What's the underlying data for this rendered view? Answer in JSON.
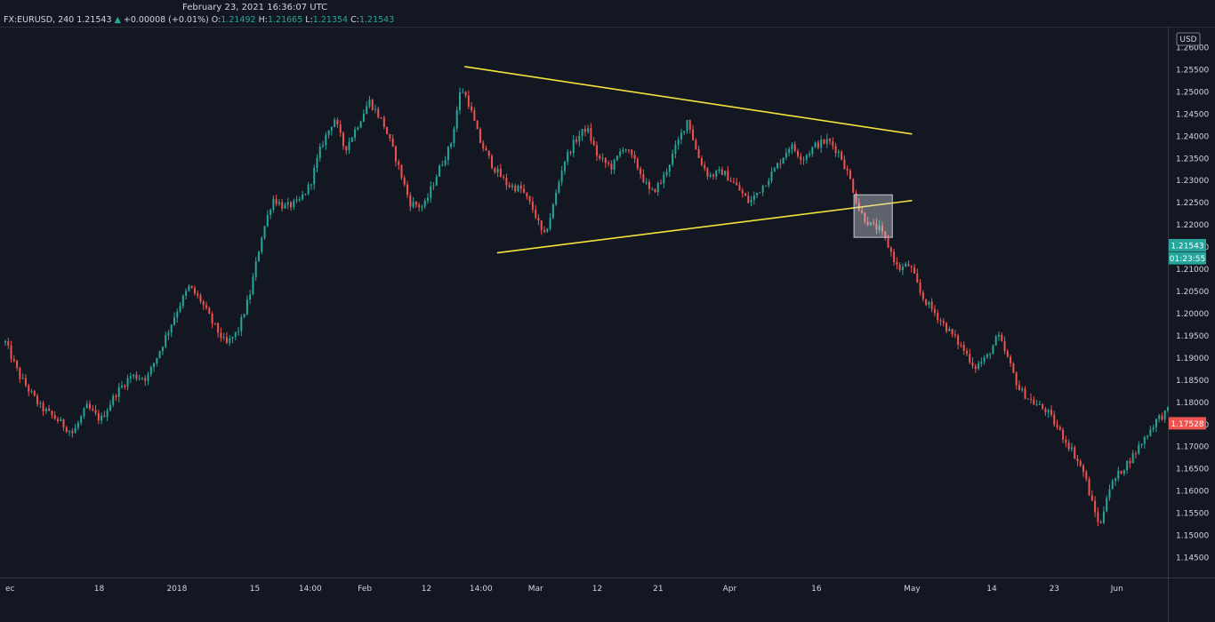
{
  "header": {
    "timestamp": "February 23, 2021 16:36:07 UTC",
    "symbol": "FX:EURUSD, 240",
    "last": "1.21543",
    "change_arrow": "▲",
    "change": "+0.00008 (+0.01%)",
    "o_label": "O:",
    "o_value": "1.21492",
    "h_label": "H:",
    "h_value": "1.21665",
    "l_label": "L:",
    "l_value": "1.21354",
    "c_label": "C:",
    "c_value": "1.21543"
  },
  "chart_data": {
    "type": "candlestick",
    "currency_label": "USD",
    "ylim": [
      1.1405,
      1.2645
    ],
    "y_ticks": [
      "1.14500",
      "1.15000",
      "1.15500",
      "1.16000",
      "1.16500",
      "1.17000",
      "1.17500",
      "1.18000",
      "1.18500",
      "1.19000",
      "1.19500",
      "1.20000",
      "1.20500",
      "1.21000",
      "1.21500",
      "1.22000",
      "1.22500",
      "1.23000",
      "1.23500",
      "1.24000",
      "1.24500",
      "1.25000",
      "1.25500",
      "1.26000"
    ],
    "x_ticks": [
      {
        "label": "ec",
        "pos": 0.0
      },
      {
        "label": "18",
        "pos": 0.0807
      },
      {
        "label": "2018",
        "pos": 0.1476
      },
      {
        "label": "15",
        "pos": 0.2146
      },
      {
        "label": "14:00",
        "pos": 0.2623
      },
      {
        "label": "Feb",
        "pos": 0.3092
      },
      {
        "label": "12",
        "pos": 0.3623
      },
      {
        "label": "14:00",
        "pos": 0.4092
      },
      {
        "label": "Mar",
        "pos": 0.4562
      },
      {
        "label": "12",
        "pos": 0.5092
      },
      {
        "label": "21",
        "pos": 0.5615
      },
      {
        "label": "Apr",
        "pos": 0.6231
      },
      {
        "label": "16",
        "pos": 0.6977
      },
      {
        "label": "May",
        "pos": 0.78
      },
      {
        "label": "14",
        "pos": 0.8485
      },
      {
        "label": "23",
        "pos": 0.9023
      },
      {
        "label": "Jun",
        "pos": 0.9562
      }
    ],
    "price_path": [
      [
        0.0,
        1.1935
      ],
      [
        0.012,
        1.186
      ],
      [
        0.03,
        1.179
      ],
      [
        0.045,
        1.176
      ],
      [
        0.058,
        1.173
      ],
      [
        0.07,
        1.179
      ],
      [
        0.082,
        1.176
      ],
      [
        0.095,
        1.182
      ],
      [
        0.108,
        1.186
      ],
      [
        0.122,
        1.1855
      ],
      [
        0.135,
        1.193
      ],
      [
        0.148,
        1.201
      ],
      [
        0.158,
        1.206
      ],
      [
        0.168,
        1.203
      ],
      [
        0.178,
        1.198
      ],
      [
        0.19,
        1.193
      ],
      [
        0.2,
        1.196
      ],
      [
        0.21,
        1.204
      ],
      [
        0.22,
        1.217
      ],
      [
        0.23,
        1.226
      ],
      [
        0.24,
        1.224
      ],
      [
        0.252,
        1.225
      ],
      [
        0.262,
        1.229
      ],
      [
        0.272,
        1.238
      ],
      [
        0.283,
        1.244
      ],
      [
        0.292,
        1.237
      ],
      [
        0.302,
        1.242
      ],
      [
        0.313,
        1.248
      ],
      [
        0.325,
        1.243
      ],
      [
        0.336,
        1.235
      ],
      [
        0.348,
        1.225
      ],
      [
        0.36,
        1.224
      ],
      [
        0.372,
        1.232
      ],
      [
        0.383,
        1.238
      ],
      [
        0.392,
        1.251
      ],
      [
        0.398,
        1.248
      ],
      [
        0.408,
        1.239
      ],
      [
        0.42,
        1.233
      ],
      [
        0.432,
        1.229
      ],
      [
        0.444,
        1.228
      ],
      [
        0.455,
        1.223
      ],
      [
        0.463,
        1.217
      ],
      [
        0.47,
        1.223
      ],
      [
        0.48,
        1.234
      ],
      [
        0.49,
        1.239
      ],
      [
        0.5,
        1.242
      ],
      [
        0.51,
        1.235
      ],
      [
        0.522,
        1.233
      ],
      [
        0.532,
        1.238
      ],
      [
        0.544,
        1.233
      ],
      [
        0.555,
        1.227
      ],
      [
        0.565,
        1.23
      ],
      [
        0.576,
        1.237
      ],
      [
        0.587,
        1.244
      ],
      [
        0.595,
        1.236
      ],
      [
        0.605,
        1.231
      ],
      [
        0.617,
        1.232
      ],
      [
        0.628,
        1.229
      ],
      [
        0.64,
        1.225
      ],
      [
        0.652,
        1.229
      ],
      [
        0.663,
        1.233
      ],
      [
        0.675,
        1.238
      ],
      [
        0.686,
        1.235
      ],
      [
        0.697,
        1.238
      ],
      [
        0.708,
        1.239
      ],
      [
        0.718,
        1.236
      ],
      [
        0.727,
        1.23
      ],
      [
        0.735,
        1.223
      ],
      [
        0.744,
        1.22
      ],
      [
        0.752,
        1.219
      ],
      [
        0.76,
        1.215
      ],
      [
        0.768,
        1.21
      ],
      [
        0.778,
        1.211
      ],
      [
        0.788,
        1.204
      ],
      [
        0.8,
        1.2
      ],
      [
        0.812,
        1.196
      ],
      [
        0.824,
        1.192
      ],
      [
        0.834,
        1.188
      ],
      [
        0.844,
        1.19
      ],
      [
        0.854,
        1.195
      ],
      [
        0.862,
        1.19
      ],
      [
        0.872,
        1.183
      ],
      [
        0.884,
        1.18
      ],
      [
        0.896,
        1.178
      ],
      [
        0.908,
        1.173
      ],
      [
        0.918,
        1.169
      ],
      [
        0.928,
        1.164
      ],
      [
        0.936,
        1.156
      ],
      [
        0.942,
        1.152
      ],
      [
        0.948,
        1.16
      ],
      [
        0.958,
        1.164
      ],
      [
        0.97,
        1.168
      ],
      [
        0.98,
        1.172
      ],
      [
        0.99,
        1.176
      ],
      [
        1.0,
        1.178
      ]
    ],
    "trendlines": [
      {
        "from": [
          0.395,
          1.2557
        ],
        "to": [
          0.78,
          1.2405
        ],
        "color": "#f5e23b"
      },
      {
        "from": [
          0.423,
          1.2137
        ],
        "to": [
          0.78,
          1.2255
        ],
        "color": "#f5e23b"
      }
    ],
    "highlight_box": {
      "x_range": [
        0.73,
        0.763
      ],
      "y_range": [
        1.2172,
        1.2268
      ]
    },
    "price_badges": [
      {
        "label": "1.21543",
        "price": 1.21543,
        "color": "#26a69a"
      },
      {
        "label": "01:23:55",
        "price": 1.2125,
        "color": "#26a69a"
      },
      {
        "label": "1.17528",
        "price": 1.17528,
        "color": "#ef5350"
      }
    ],
    "colors": {
      "up": "#26a69a",
      "down": "#ef5350",
      "background": "#131722",
      "axis_text": "#d1d4dc"
    }
  }
}
